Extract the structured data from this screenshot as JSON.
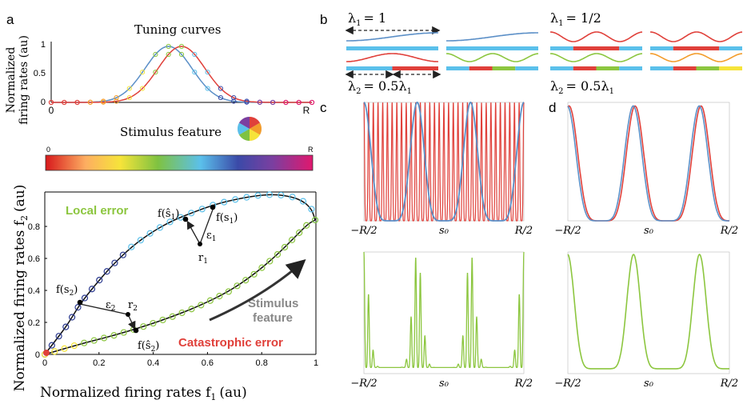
{
  "panels": {
    "a": "a",
    "b": "b",
    "c": "c",
    "d": "d"
  },
  "tuning": {
    "title": "Tuning curves",
    "ylabel_l1": "Normalized",
    "ylabel_l2": "firing rates (au)",
    "yticks": [
      "0",
      "0.5",
      "1"
    ],
    "xticks": [
      "0",
      "R"
    ],
    "xlabel": "Stimulus feature",
    "bar_ticks": [
      "0",
      "R"
    ]
  },
  "manifold": {
    "xlabel": "Normalized firing rates f",
    "xlabel_sub": "1",
    "xlabel_unit": "(au)",
    "ylabel": "Normalized firing rates f",
    "ylabel_sub": "2",
    "ylabel_unit": "(au)",
    "xticks": [
      "0",
      "0.2",
      "0.4",
      "0.6",
      "0.8",
      "1"
    ],
    "yticks": [
      "0",
      "0.2",
      "0.4",
      "0.6",
      "0.8"
    ],
    "local_error": "Local error",
    "catastrophic_error": "Catastrophic error",
    "stim_l1": "Stimulus",
    "stim_l2": "feature",
    "labels": {
      "fs1hat": "f(ŝ",
      "fs1": "f(s",
      "eps1": "ε",
      "r1": "r",
      "fs2": "f(s",
      "eps2": "ε",
      "r2": "r",
      "fs2hat": "f(ŝ",
      "close": ")",
      "sub1": "1",
      "sub2": "2"
    }
  },
  "lambda": {
    "lam1_left": "λ",
    "lam1_left_val": "= 1",
    "lam2_left": "λ",
    "lam2_left_val": "= 0.5λ",
    "lam1_right": "λ",
    "lam1_right_val": "= 1/2",
    "lam2_right": "λ",
    "lam2_right_val": "= 0.5λ",
    "sub1": "1",
    "sub2": "2"
  },
  "axis_ticks": [
    "−R/2",
    "s₀",
    "R/2"
  ],
  "colors": {
    "blue": "#5b8fc7",
    "red": "#e0403a",
    "green": "#8cc63f",
    "lightblue": "#5bc0eb",
    "orange": "#f39c2b",
    "darkblue": "#2b3a8f"
  }
}
